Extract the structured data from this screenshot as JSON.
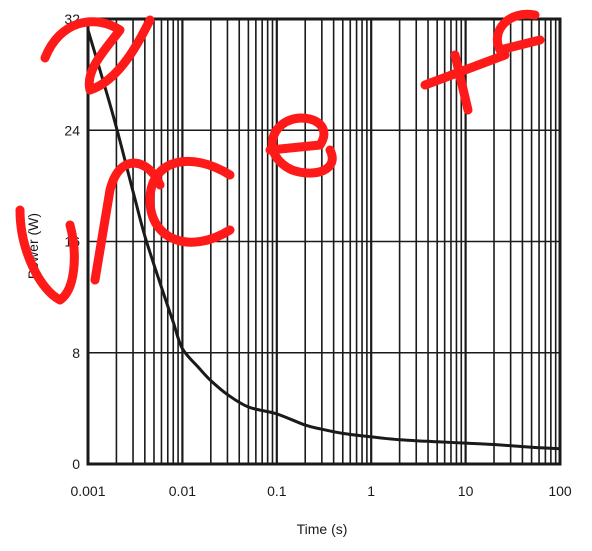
{
  "chart_data": {
    "type": "line",
    "title": "",
    "xlabel": "Time (s)",
    "ylabel": "Power (W)",
    "x_scale": "log",
    "xlim": [
      0.001,
      100
    ],
    "ylim": [
      0,
      32
    ],
    "x_ticks": [
      "0.001",
      "0.01",
      "0.1",
      "1",
      "10",
      "100"
    ],
    "y_ticks": [
      "0",
      "8",
      "16",
      "24",
      "32"
    ],
    "grid": true,
    "legend": "none",
    "series": [
      {
        "x": [
          0.001,
          0.0015,
          0.002,
          0.003,
          0.004,
          0.006,
          0.008,
          0.01,
          0.015,
          0.02,
          0.03,
          0.05,
          0.1,
          0.2,
          0.3,
          0.5,
          1,
          2,
          5,
          10,
          20,
          50,
          100
        ],
        "y": [
          31.2,
          27.2,
          24.2,
          19.6,
          16.4,
          12.7,
          10.2,
          8.3,
          6.9,
          6.0,
          5.0,
          4.1,
          3.6,
          2.8,
          2.5,
          2.2,
          1.95,
          1.75,
          1.6,
          1.5,
          1.4,
          1.2,
          1.1
        ]
      }
    ],
    "line_color": "#1a1a1a",
    "grid_color": "#1a1a1a"
  },
  "watermark": {
    "text": "Source Te",
    "color": "#ff1a1a"
  }
}
